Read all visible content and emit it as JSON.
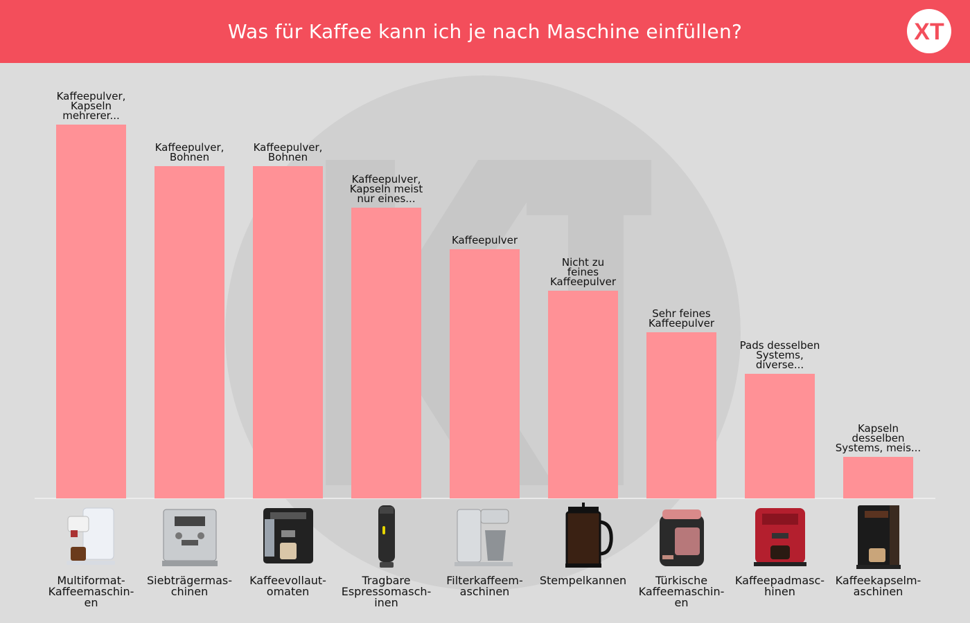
{
  "header": {
    "title": "Was für Kaffee kann ich je nach Maschine einfüllen?",
    "logo_text": "XT",
    "bg_color": "#f34e5b"
  },
  "watermark": {
    "text": "KT"
  },
  "chart_data": {
    "type": "bar",
    "title": "Was für Kaffee kann ich je nach Maschine einfüllen?",
    "xlabel": "",
    "ylabel": "",
    "grid": false,
    "bar_color": "#ff9196",
    "ylim": [
      0,
      9
    ],
    "categories": [
      "Multiformat-Kaffeemaschin-en",
      "Siebträgermas-chinen",
      "Kaffeevollaut-omaten",
      "Tragbare Espressomasch-inen",
      "Filterkaffeem-aschinen",
      "Stempelkannen",
      "Türkische Kaffeemaschin-en",
      "Kaffeepadmasc-hinen",
      "Kaffeekapselm-aschinen"
    ],
    "category_lines": [
      [
        "Multiformat-",
        "Kaffeemaschin-",
        "en"
      ],
      [
        "Siebträgermas-",
        "chinen"
      ],
      [
        "Kaffeevollaut-",
        "omaten"
      ],
      [
        "Tragbare",
        "Espressomasch-",
        "inen"
      ],
      [
        "Filterkaffeem-",
        "aschinen"
      ],
      [
        "Stempelkannen"
      ],
      [
        "Türkische",
        "Kaffeemaschin-",
        "en"
      ],
      [
        "Kaffeepadmasc-",
        "hinen"
      ],
      [
        "Kaffeekapselm-",
        "aschinen"
      ]
    ],
    "values": [
      9,
      8,
      8,
      7,
      6,
      5,
      4,
      3,
      1
    ],
    "bar_labels": [
      [
        "Kaffeepulver,",
        "Kapseln",
        "mehrerer..."
      ],
      [
        "Kaffeepulver,",
        "Bohnen"
      ],
      [
        "Kaffeepulver,",
        "Bohnen"
      ],
      [
        "Kaffeepulver,",
        "Kapseln meist",
        "nur eines..."
      ],
      [
        "Kaffeepulver"
      ],
      [
        "Nicht zu",
        "feines",
        "Kaffeepulver"
      ],
      [
        "Sehr feines",
        "Kaffeepulver"
      ],
      [
        "Pads desselben",
        "Systems,",
        "diverse..."
      ],
      [
        "Kapseln",
        "desselben",
        "Systems, meis..."
      ]
    ],
    "product_icons": [
      "multiformat-machine-icon",
      "portafilter-machine-icon",
      "fully-automatic-machine-icon",
      "portable-espresso-icon",
      "filter-coffee-machine-icon",
      "french-press-icon",
      "turkish-coffee-machine-icon",
      "pad-machine-icon",
      "capsule-machine-icon"
    ]
  }
}
